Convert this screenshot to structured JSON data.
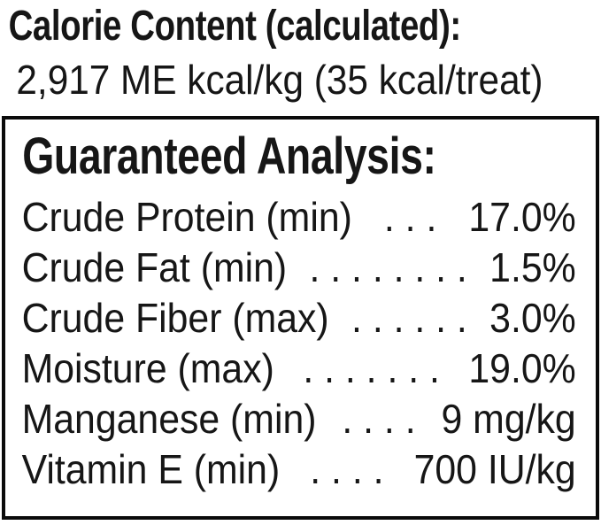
{
  "header": {
    "title": "Calorie Content (calculated):",
    "subtitle": "2,917 ME kcal/kg (35 kcal/treat)"
  },
  "guaranteed_analysis": {
    "title": "Guaranteed Analysis:",
    "rows": [
      {
        "label": "Crude Protein (min)",
        "dots": ". . .",
        "value": "17.0%"
      },
      {
        "label": "Crude Fat (min)",
        "dots": ". . . . . . . .",
        "value": "1.5%"
      },
      {
        "label": "Crude Fiber (max)",
        "dots": ". . . . . .",
        "value": "3.0%"
      },
      {
        "label": "Moisture (max)",
        "dots": ". . . . . . .",
        "value": "19.0%"
      },
      {
        "label": "Manganese (min)",
        "dots": ". . . .",
        "value": "9 mg/kg"
      },
      {
        "label": "Vitamin E (min)",
        "dots": ". . . .",
        "value": "700 IU/kg"
      }
    ]
  },
  "colors": {
    "text": "#161616",
    "border": "#0b0b0b",
    "background": "#ffffff"
  }
}
